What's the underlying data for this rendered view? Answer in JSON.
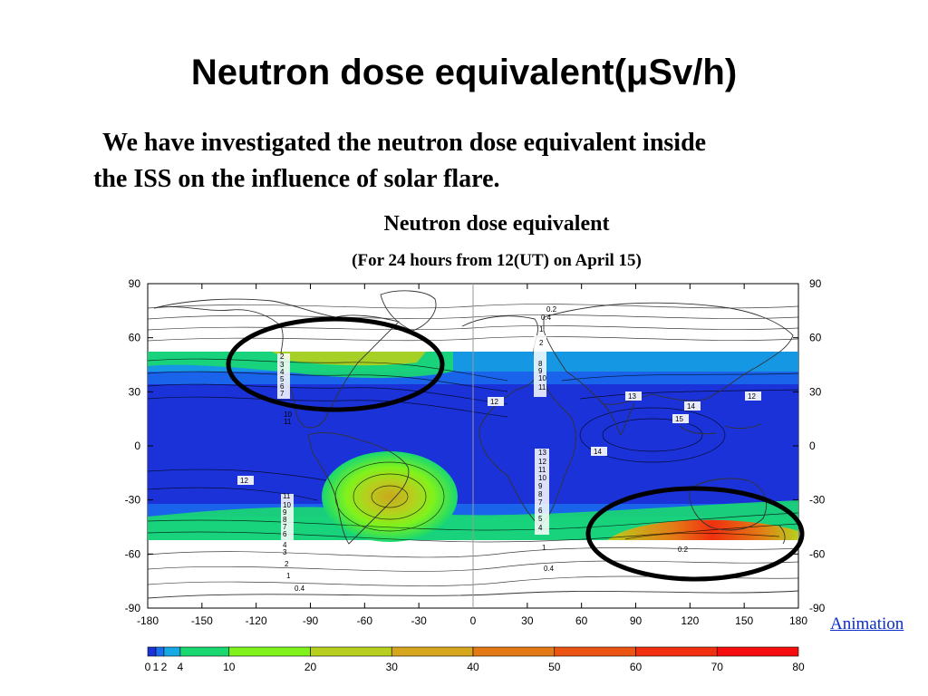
{
  "slide": {
    "title": "Neutron dose equivalent(μSv/h)",
    "body_line1": "We have investigated the neutron dose equivalent inside",
    "body_line2": "the ISS on the influence of solar flare."
  },
  "figure": {
    "title": "Neutron dose equivalent",
    "subtitle": "(For 24 hours from 12(UT) on April 15)",
    "lon_ticks": [
      -180,
      -150,
      -120,
      -90,
      -60,
      -30,
      0,
      30,
      60,
      90,
      120,
      150,
      180
    ],
    "lat_ticks": [
      90,
      60,
      30,
      0,
      -30,
      -60,
      -90
    ],
    "colorbar_levels": [
      0,
      1,
      2,
      4,
      10,
      20,
      30,
      40,
      50,
      60,
      70,
      80
    ],
    "colorbar_labels": [
      "0",
      "1",
      "2",
      "4",
      "10",
      "20",
      "30",
      "40",
      "50",
      "60",
      "70",
      "80"
    ],
    "colorbar_colors": [
      "#1a32d8",
      "#1a6ff0",
      "#16a9e6",
      "#19d870",
      "#7ff21c",
      "#b7cf1e",
      "#d6a71c",
      "#e47a16",
      "#ec5412",
      "#f0300f",
      "#f70d0d"
    ],
    "contour_labels": [
      "0.2",
      "0.4",
      "1",
      "2",
      "3",
      "4",
      "5",
      "6",
      "7",
      "8",
      "9",
      "10",
      "11",
      "12",
      "13",
      "14",
      "15"
    ],
    "highlight_regions": [
      "north-america-high-latitude",
      "south-indian-ocean"
    ]
  },
  "link": {
    "animation_label": "Animation"
  }
}
